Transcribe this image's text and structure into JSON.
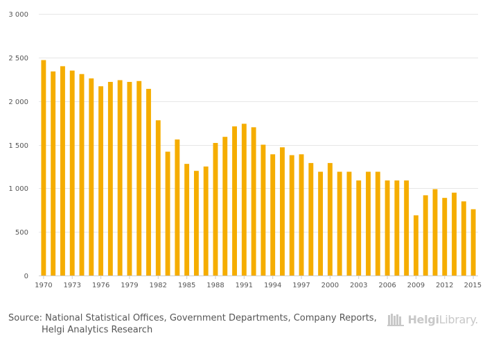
{
  "chart_data": {
    "type": "bar",
    "title": "",
    "xlabel": "",
    "ylabel": "",
    "ylim": [
      0,
      3000
    ],
    "yticks": [
      0,
      500,
      1000,
      1500,
      2000,
      2500,
      3000
    ],
    "ytick_labels": [
      "0",
      "500",
      "1 000",
      "1 500",
      "2 000",
      "2 500",
      "3 000"
    ],
    "xtick_labels": [
      "1970",
      "1973",
      "1976",
      "1979",
      "1982",
      "1985",
      "1988",
      "1991",
      "1994",
      "1997",
      "2000",
      "2003",
      "2006",
      "2009",
      "2012",
      "2015"
    ],
    "grid": true,
    "bar_color": "#F5AD00",
    "categories": [
      1970,
      1971,
      1972,
      1973,
      1974,
      1975,
      1976,
      1977,
      1978,
      1979,
      1980,
      1981,
      1982,
      1983,
      1984,
      1985,
      1986,
      1987,
      1988,
      1989,
      1990,
      1991,
      1992,
      1993,
      1994,
      1995,
      1996,
      1997,
      1998,
      1999,
      2000,
      2001,
      2002,
      2003,
      2004,
      2005,
      2006,
      2007,
      2008,
      2009,
      2010,
      2011,
      2012,
      2013,
      2014,
      2015
    ],
    "values": [
      2470,
      2340,
      2400,
      2350,
      2310,
      2260,
      2170,
      2220,
      2240,
      2220,
      2230,
      2140,
      1780,
      1420,
      1560,
      1280,
      1200,
      1250,
      1520,
      1590,
      1710,
      1740,
      1700,
      1500,
      1390,
      1470,
      1380,
      1390,
      1290,
      1190,
      1290,
      1190,
      1190,
      1090,
      1190,
      1190,
      1090,
      1090,
      1090,
      690,
      920,
      990,
      890,
      950,
      850,
      760
    ]
  },
  "footer": {
    "source_line1": "Source: National Statistical Offices, Government Departments, Company Reports,",
    "source_line2": "Helgi Analytics Research",
    "logo_text_bold": "Helgi",
    "logo_text_light": "Library."
  }
}
